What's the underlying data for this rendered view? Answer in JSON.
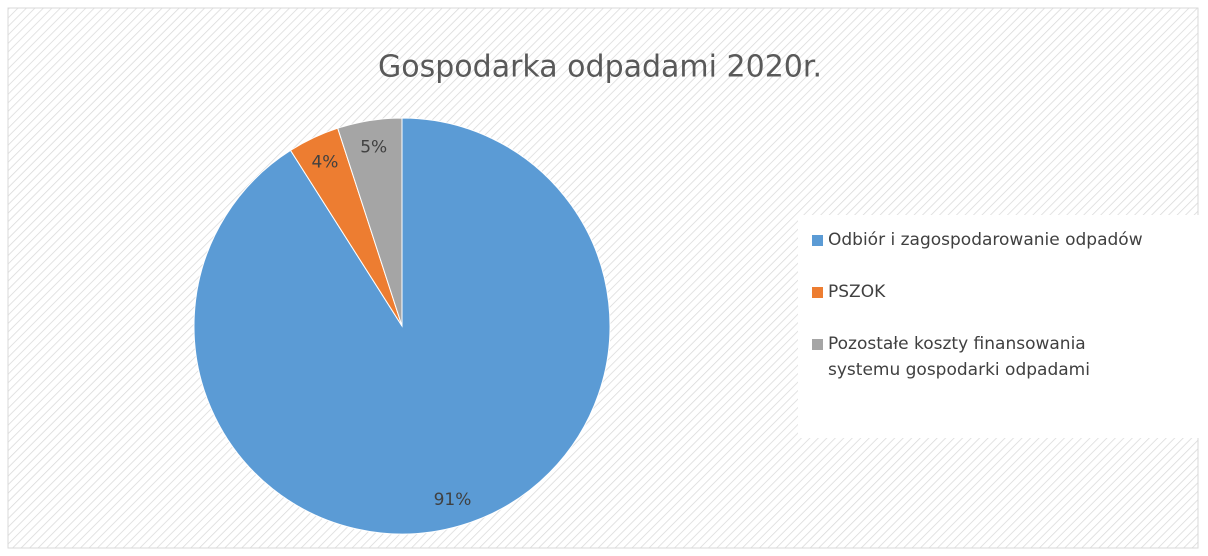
{
  "chart_data": {
    "type": "pie",
    "title": "Gospodarka odpadami 2020r.",
    "categories": [
      "Odbiór i zagospodarowanie odpadów",
      "PSZOK",
      "Pozostałe koszty finansowania systemu gospodarki odpadami"
    ],
    "values": [
      91,
      4,
      5
    ],
    "value_labels": [
      "91%",
      "4%",
      "5%"
    ],
    "colors": [
      "#5b9bd5",
      "#ed7d31",
      "#a5a5a5"
    ],
    "legend": "right"
  }
}
